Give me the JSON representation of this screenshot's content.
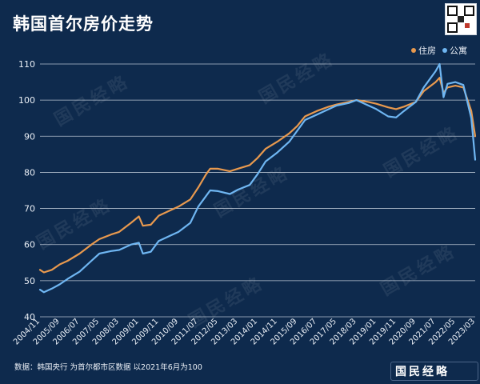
{
  "title": "韩国首尔房价走势",
  "source": "数据：韩国央行 为首尔都市区数据 以2021年6月为100",
  "brand": "国民经略",
  "watermark_text": "国民经略",
  "colors": {
    "background": "#0e2a4d",
    "house": "#e8994e",
    "apartment": "#6fb6f2",
    "grid": "#c8d2de"
  },
  "chart_data": {
    "type": "line",
    "title": "韩国首尔房价走势",
    "legend_position": "top-right",
    "grid": true,
    "ylim": [
      40,
      110
    ],
    "yticks": [
      40,
      50,
      60,
      70,
      80,
      90,
      100,
      110
    ],
    "xticks": [
      "2004/11",
      "2005/09",
      "2006/07",
      "2007/05",
      "2008/03",
      "2009/01",
      "2009/11",
      "2010/09",
      "2011/07",
      "2012/05",
      "2013/03",
      "2014/01",
      "2014/11",
      "2015/09",
      "2016/07",
      "2017/05",
      "2018/03",
      "2019/01",
      "2019/11",
      "2020/09",
      "2021/07",
      "2022/05",
      "2023/03"
    ],
    "series": [
      {
        "name": "住房",
        "color": "#e8994e",
        "points": [
          [
            "2004/11",
            53
          ],
          [
            "2005/01",
            52.3
          ],
          [
            "2005/05",
            53
          ],
          [
            "2005/09",
            54.5
          ],
          [
            "2006/01",
            55.5
          ],
          [
            "2006/07",
            57.5
          ],
          [
            "2007/01",
            60
          ],
          [
            "2007/05",
            61.5
          ],
          [
            "2007/11",
            62.8
          ],
          [
            "2008/03",
            63.5
          ],
          [
            "2008/09",
            66
          ],
          [
            "2009/01",
            67.8
          ],
          [
            "2009/03",
            65.2
          ],
          [
            "2009/07",
            65.5
          ],
          [
            "2009/11",
            68
          ],
          [
            "2010/05",
            69.5
          ],
          [
            "2010/09",
            70.5
          ],
          [
            "2011/03",
            72.5
          ],
          [
            "2011/07",
            75.8
          ],
          [
            "2011/11",
            79.5
          ],
          [
            "2012/01",
            81
          ],
          [
            "2012/05",
            81
          ],
          [
            "2012/11",
            80.3
          ],
          [
            "2013/03",
            81
          ],
          [
            "2013/09",
            82
          ],
          [
            "2014/01",
            84
          ],
          [
            "2014/05",
            86.5
          ],
          [
            "2014/11",
            88.5
          ],
          [
            "2015/05",
            90.8
          ],
          [
            "2015/09",
            92.8
          ],
          [
            "2016/01",
            95.5
          ],
          [
            "2016/07",
            97
          ],
          [
            "2017/01",
            98.2
          ],
          [
            "2017/05",
            98.8
          ],
          [
            "2017/11",
            99.5
          ],
          [
            "2018/03",
            100
          ],
          [
            "2018/09",
            99.5
          ],
          [
            "2019/01",
            99
          ],
          [
            "2019/07",
            98
          ],
          [
            "2019/11",
            97.5
          ],
          [
            "2020/03",
            98.2
          ],
          [
            "2020/09",
            99.5
          ],
          [
            "2021/01",
            102.5
          ],
          [
            "2021/07",
            105
          ],
          [
            "2021/09",
            106.2
          ],
          [
            "2021/11",
            102
          ],
          [
            "2022/01",
            103.5
          ],
          [
            "2022/05",
            104
          ],
          [
            "2022/09",
            103.5
          ],
          [
            "2023/01",
            97
          ],
          [
            "2023/03",
            90
          ]
        ]
      },
      {
        "name": "公寓",
        "color": "#6fb6f2",
        "points": [
          [
            "2004/11",
            47.5
          ],
          [
            "2005/01",
            46.8
          ],
          [
            "2005/05",
            47.8
          ],
          [
            "2005/09",
            49
          ],
          [
            "2006/01",
            50.5
          ],
          [
            "2006/07",
            52.5
          ],
          [
            "2007/01",
            55.5
          ],
          [
            "2007/05",
            57.5
          ],
          [
            "2007/11",
            58.2
          ],
          [
            "2008/03",
            58.5
          ],
          [
            "2008/09",
            60
          ],
          [
            "2009/01",
            60.5
          ],
          [
            "2009/03",
            57.5
          ],
          [
            "2009/07",
            58
          ],
          [
            "2009/11",
            61
          ],
          [
            "2010/05",
            62.5
          ],
          [
            "2010/09",
            63.5
          ],
          [
            "2011/03",
            66
          ],
          [
            "2011/07",
            70.5
          ],
          [
            "2011/11",
            73.5
          ],
          [
            "2012/01",
            75
          ],
          [
            "2012/05",
            74.8
          ],
          [
            "2012/11",
            74
          ],
          [
            "2013/03",
            75.2
          ],
          [
            "2013/09",
            76.5
          ],
          [
            "2014/01",
            79.5
          ],
          [
            "2014/05",
            83
          ],
          [
            "2014/11",
            85.5
          ],
          [
            "2015/05",
            88.5
          ],
          [
            "2015/09",
            91.5
          ],
          [
            "2016/01",
            94.5
          ],
          [
            "2016/07",
            96
          ],
          [
            "2017/01",
            97.5
          ],
          [
            "2017/05",
            98.5
          ],
          [
            "2017/11",
            99.2
          ],
          [
            "2018/03",
            100
          ],
          [
            "2018/09",
            98.5
          ],
          [
            "2019/01",
            97.5
          ],
          [
            "2019/07",
            95.5
          ],
          [
            "2019/11",
            95.2
          ],
          [
            "2020/03",
            97
          ],
          [
            "2020/09",
            99.5
          ],
          [
            "2021/01",
            103.5
          ],
          [
            "2021/07",
            108
          ],
          [
            "2021/09",
            110
          ],
          [
            "2021/11",
            100.8
          ],
          [
            "2022/01",
            104.5
          ],
          [
            "2022/05",
            105
          ],
          [
            "2022/09",
            104.2
          ],
          [
            "2023/01",
            95
          ],
          [
            "2023/03",
            83.5
          ]
        ]
      }
    ]
  }
}
